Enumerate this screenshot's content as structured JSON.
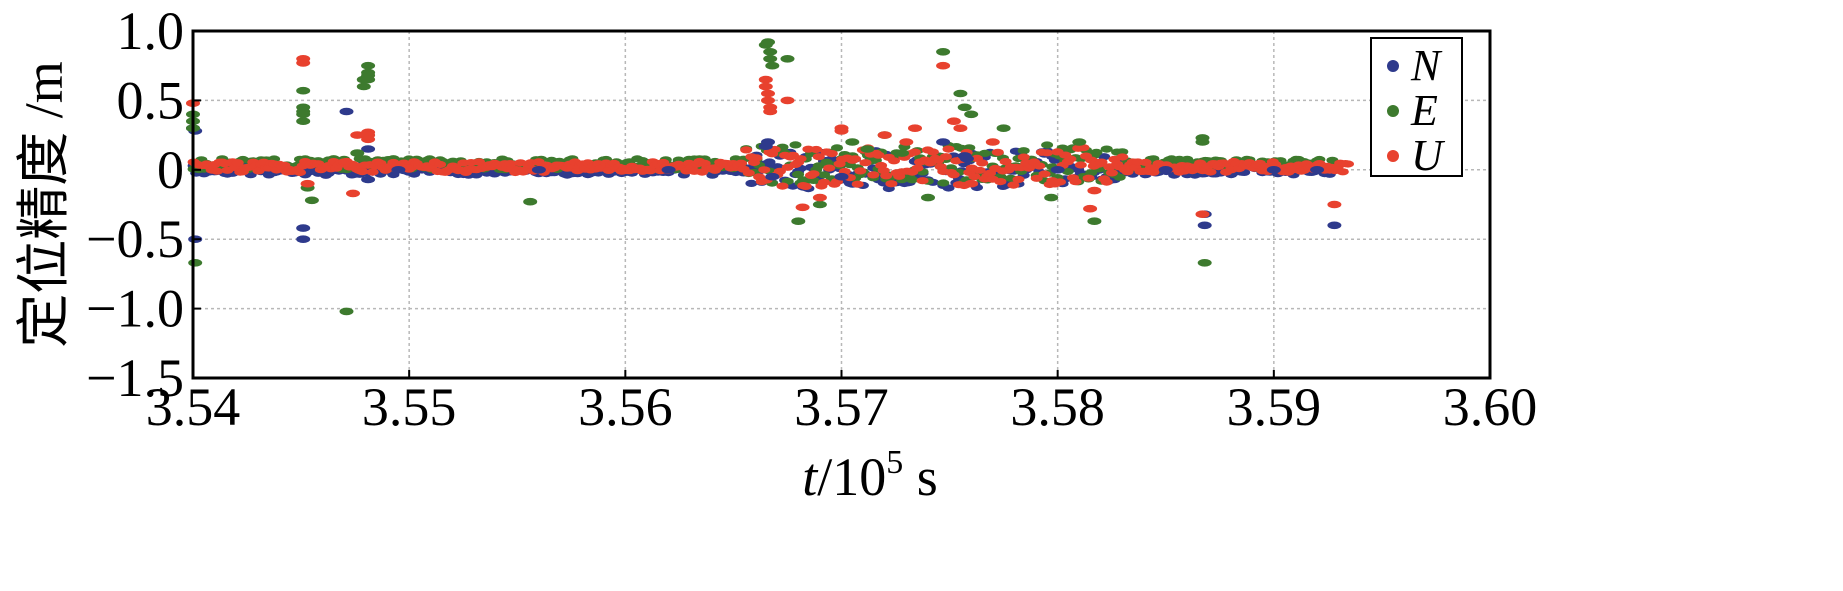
{
  "chart_data": {
    "type": "scatter",
    "xlabel_var": "t",
    "xlabel_unit": "/10",
    "xlabel_exp": "5",
    "xlabel_s": " s",
    "ylabel": "定位精度 /m",
    "xlim": [
      3.54,
      3.6
    ],
    "ylim": [
      -1.5,
      1.0
    ],
    "xticks": [
      3.54,
      3.55,
      3.56,
      3.57,
      3.58,
      3.59,
      3.6
    ],
    "xtick_labels": [
      "3.54",
      "3.55",
      "3.56",
      "3.57",
      "3.58",
      "3.59",
      "3.60"
    ],
    "yticks": [
      1.0,
      0.5,
      0,
      -0.5,
      -1.0,
      -1.5
    ],
    "ytick_labels": [
      "1.0",
      "0.5",
      "0",
      "−0.5",
      "−1.0",
      "−1.5"
    ],
    "grid": true,
    "legend_position": "top-right",
    "series": [
      {
        "name": "N",
        "color": "#2e3a8c",
        "x": [
          3.54,
          3.5401,
          3.5401,
          3.5451,
          3.5451,
          3.5471,
          3.5481,
          3.5481,
          3.5665,
          3.5666,
          3.5668,
          3.5747,
          3.5757,
          3.5758,
          3.5868,
          3.5868,
          3.5928,
          3.5495,
          3.556,
          3.562,
          3.57,
          3.58,
          3.585,
          3.59,
          3.592
        ],
        "y": [
          0.3,
          0.28,
          -0.5,
          -0.42,
          -0.5,
          0.42,
          0.15,
          -0.07,
          0.17,
          0.2,
          -0.05,
          0.2,
          0.1,
          0.08,
          -0.32,
          -0.4,
          -0.4,
          0.0,
          0.0,
          0.0,
          -0.05,
          0.0,
          0.0,
          0.0,
          0.0
        ]
      },
      {
        "name": "E",
        "color": "#3d7a2e",
        "x": [
          3.54,
          3.54,
          3.54,
          3.5401,
          3.5451,
          3.5451,
          3.5451,
          3.5451,
          3.5451,
          3.5453,
          3.5455,
          3.5471,
          3.5476,
          3.5479,
          3.5479,
          3.5481,
          3.5481,
          3.5481,
          3.5481,
          3.5556,
          3.5665,
          3.5666,
          3.5667,
          3.5667,
          3.5668,
          3.5675,
          3.568,
          3.569,
          3.5705,
          3.5712,
          3.572,
          3.574,
          3.5747,
          3.5755,
          3.5757,
          3.576,
          3.5775,
          3.5797,
          3.581,
          3.5817,
          3.5867,
          3.5867,
          3.5868,
          3.5728
        ],
        "y": [
          0.4,
          0.35,
          0.3,
          -0.67,
          0.57,
          0.45,
          0.42,
          0.4,
          0.35,
          -0.13,
          -0.22,
          -1.02,
          0.12,
          0.65,
          0.6,
          0.75,
          0.7,
          0.68,
          0.65,
          -0.23,
          0.9,
          0.92,
          0.85,
          0.8,
          0.75,
          0.8,
          -0.37,
          -0.25,
          0.2,
          0.15,
          0.25,
          -0.2,
          0.85,
          0.55,
          0.45,
          0.4,
          0.3,
          -0.2,
          0.2,
          -0.37,
          0.23,
          0.2,
          -0.67,
          0.12
        ]
      },
      {
        "name": "U",
        "color": "#e8412e",
        "x": [
          3.54,
          3.5451,
          3.5451,
          3.5453,
          3.5474,
          3.5476,
          3.5481,
          3.5481,
          3.5481,
          3.5665,
          3.5665,
          3.5666,
          3.5666,
          3.5667,
          3.5667,
          3.5675,
          3.5682,
          3.569,
          3.57,
          3.572,
          3.573,
          3.5734,
          3.5747,
          3.5752,
          3.5755,
          3.576,
          3.577,
          3.5815,
          3.5817,
          3.5867,
          3.5928,
          3.57
        ],
        "y": [
          0.48,
          0.8,
          0.77,
          -0.1,
          -0.17,
          0.25,
          0.27,
          0.25,
          0.22,
          0.65,
          0.6,
          0.55,
          0.5,
          0.45,
          0.42,
          0.5,
          -0.27,
          -0.2,
          0.3,
          0.25,
          0.2,
          0.3,
          0.75,
          0.35,
          0.3,
          -0.1,
          0.2,
          -0.28,
          -0.15,
          -0.32,
          -0.25,
          0.28
        ]
      }
    ]
  }
}
